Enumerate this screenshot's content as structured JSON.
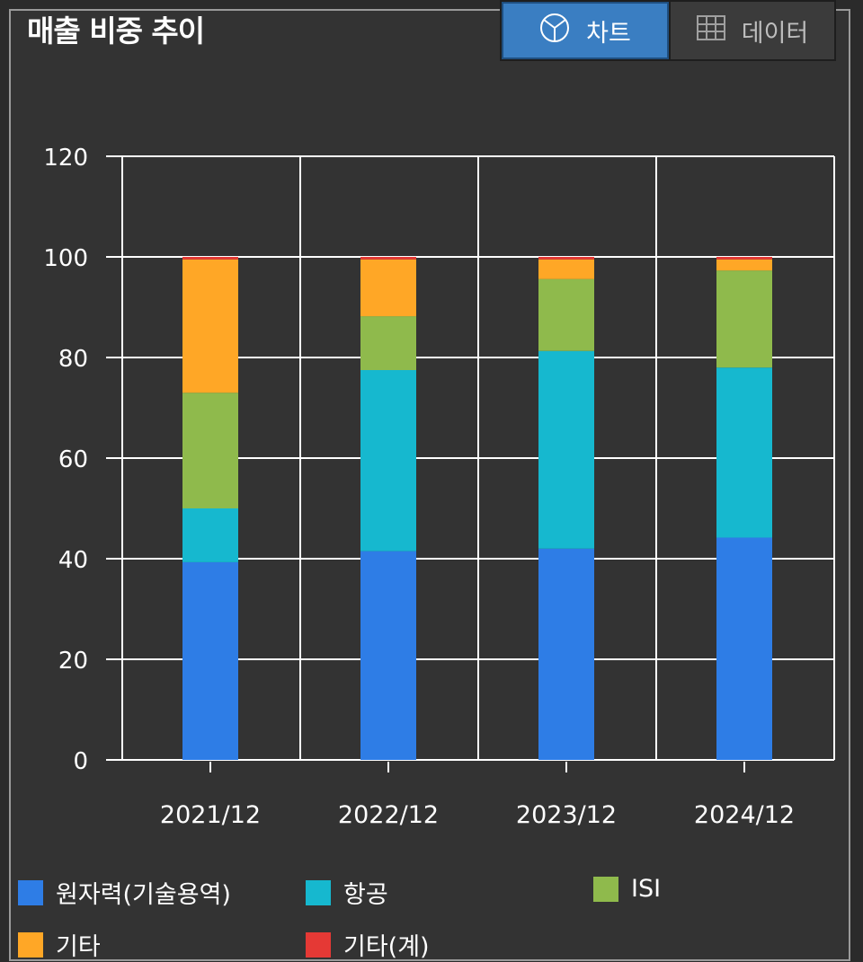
{
  "header": {
    "title": "매출 비중 추이",
    "tab_chart_label": "차트",
    "tab_table_label": "데이터",
    "chart_icon": "pie-chart-icon",
    "table_icon": "grid-table-icon"
  },
  "colors": {
    "nuclear": "#2e7de6",
    "aviation": "#16b8cf",
    "isi": "#8fba4c",
    "other": "#ffa726",
    "other_sum": "#e53935",
    "grid": "#ffffff",
    "background": "#333333"
  },
  "legend": [
    {
      "label": "원자력(기술용역)",
      "color": "#2e7de6"
    },
    {
      "label": "항공",
      "color": "#16b8cf"
    },
    {
      "label": "ISI",
      "color": "#8fba4c"
    },
    {
      "label": "기타",
      "color": "#ffa726"
    },
    {
      "label": "기타(계)",
      "color": "#e53935"
    }
  ],
  "chart_data": {
    "type": "bar",
    "stacked": true,
    "title": "매출 비중 추이",
    "categories": [
      "2021/12",
      "2022/12",
      "2023/12",
      "2024/12"
    ],
    "series": [
      {
        "name": "원자력(기술용역)",
        "values": [
          39.3,
          41.5,
          42.0,
          44.2
        ]
      },
      {
        "name": "항공",
        "values": [
          10.7,
          36.0,
          39.3,
          33.8
        ]
      },
      {
        "name": "ISI",
        "values": [
          23.0,
          10.7,
          14.3,
          19.3
        ]
      },
      {
        "name": "기타",
        "values": [
          26.5,
          11.3,
          3.9,
          2.2
        ]
      },
      {
        "name": "기타(계)",
        "values": [
          0.5,
          0.5,
          0.5,
          0.5
        ]
      }
    ],
    "ylim": [
      0,
      120
    ],
    "yticks": [
      0,
      20,
      40,
      60,
      80,
      100,
      120
    ],
    "xlabel": "",
    "ylabel": "",
    "grid": true,
    "legend_position": "bottom"
  }
}
